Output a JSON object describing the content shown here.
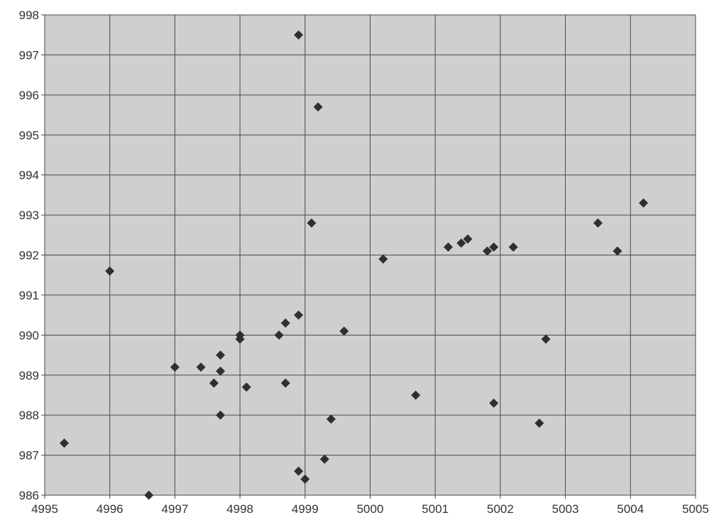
{
  "chart_data": {
    "type": "scatter",
    "title": "",
    "xlabel": "",
    "ylabel": "",
    "xlim": [
      4995,
      5005
    ],
    "ylim": [
      986,
      998
    ],
    "x_ticks": [
      "4995",
      "4996",
      "4997",
      "4998",
      "4999",
      "5000",
      "5001",
      "5002",
      "5003",
      "5004",
      "5005"
    ],
    "y_ticks": [
      "986",
      "987",
      "988",
      "989",
      "990",
      "991",
      "992",
      "993",
      "994",
      "995",
      "996",
      "997",
      "998"
    ],
    "grid": true,
    "legend": "none",
    "marker": "diamond",
    "colors": {
      "marker": "#2f2f2f",
      "plot_background": "#cfcfcf",
      "grid": "#4a4a4a"
    },
    "series": [
      {
        "points": [
          [
            4995.3,
            987.3
          ],
          [
            4996.0,
            991.6
          ],
          [
            4996.6,
            986.0
          ],
          [
            4997.0,
            989.2
          ],
          [
            4997.4,
            989.2
          ],
          [
            4997.6,
            988.8
          ],
          [
            4997.7,
            989.5
          ],
          [
            4997.7,
            989.1
          ],
          [
            4997.7,
            988.0
          ],
          [
            4998.0,
            990.0
          ],
          [
            4998.0,
            989.9
          ],
          [
            4998.1,
            988.7
          ],
          [
            4998.6,
            990.0
          ],
          [
            4998.7,
            990.3
          ],
          [
            4998.7,
            988.8
          ],
          [
            4998.9,
            990.5
          ],
          [
            4998.9,
            997.5
          ],
          [
            4998.9,
            986.6
          ],
          [
            4999.0,
            986.4
          ],
          [
            4999.1,
            992.8
          ],
          [
            4999.2,
            995.7
          ],
          [
            4999.3,
            986.9
          ],
          [
            4999.4,
            987.9
          ],
          [
            4999.6,
            990.1
          ],
          [
            5000.2,
            991.9
          ],
          [
            5000.7,
            988.5
          ],
          [
            5001.2,
            992.2
          ],
          [
            5001.4,
            992.3
          ],
          [
            5001.5,
            992.4
          ],
          [
            5001.8,
            992.1
          ],
          [
            5001.9,
            992.2
          ],
          [
            5001.9,
            988.3
          ],
          [
            5002.2,
            992.2
          ],
          [
            5002.6,
            987.8
          ],
          [
            5002.7,
            989.9
          ],
          [
            5003.5,
            992.8
          ],
          [
            5003.8,
            992.1
          ],
          [
            5004.2,
            993.3
          ]
        ]
      }
    ]
  }
}
